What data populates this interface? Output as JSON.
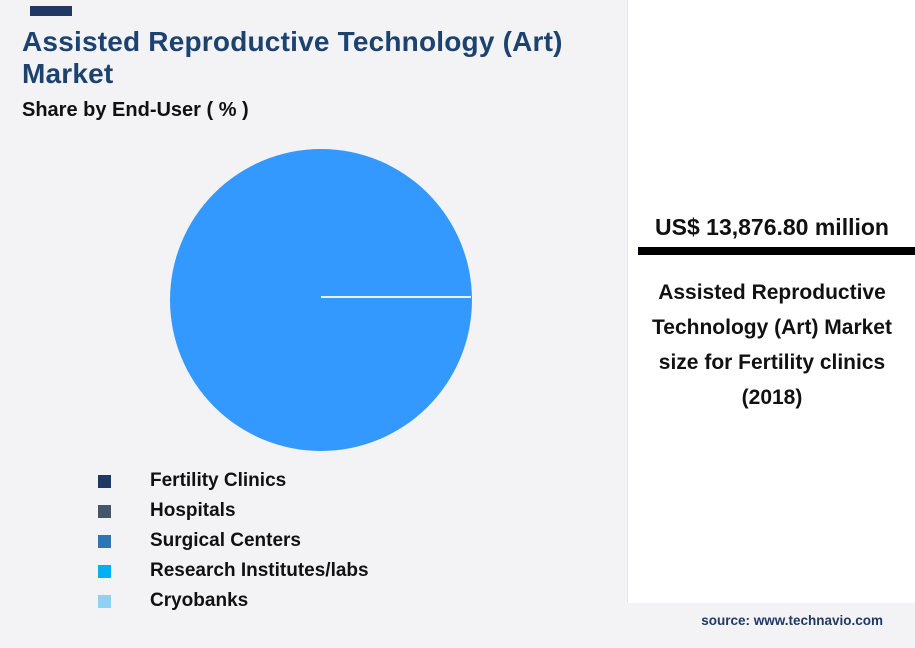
{
  "header": {
    "title": "Assisted Reproductive Technology (Art) Market",
    "subtitle": "Share by End-User ( % )"
  },
  "chart_data": {
    "type": "pie",
    "title": "Assisted Reproductive Technology (Art) Market",
    "subtitle": "Share by End-User ( % )",
    "categories": [
      "Fertility Clinics",
      "Hospitals",
      "Surgical Centers",
      "Research Institutes/labs",
      "Cryobanks"
    ],
    "values": [
      100,
      0,
      0,
      0,
      0
    ],
    "colors": [
      "#1f3864",
      "#44546a",
      "#2e75b6",
      "#00b0f0",
      "#8fd1f5"
    ],
    "slice_color": "#3399ff",
    "legend_position": "bottom-left",
    "data_labels": "none"
  },
  "stat_panel": {
    "value": "US$ 13,876.80 million",
    "description": "Assisted Reproductive Technology (Art) Market size for Fertility clinics (2018)"
  },
  "footer": {
    "source": "source: www.technavio.com"
  },
  "palette": {
    "background": "#f3f3f5",
    "panel": "#ffffff",
    "title_text": "#1c4370",
    "accent": "#1f3864",
    "divider": "#000000"
  }
}
